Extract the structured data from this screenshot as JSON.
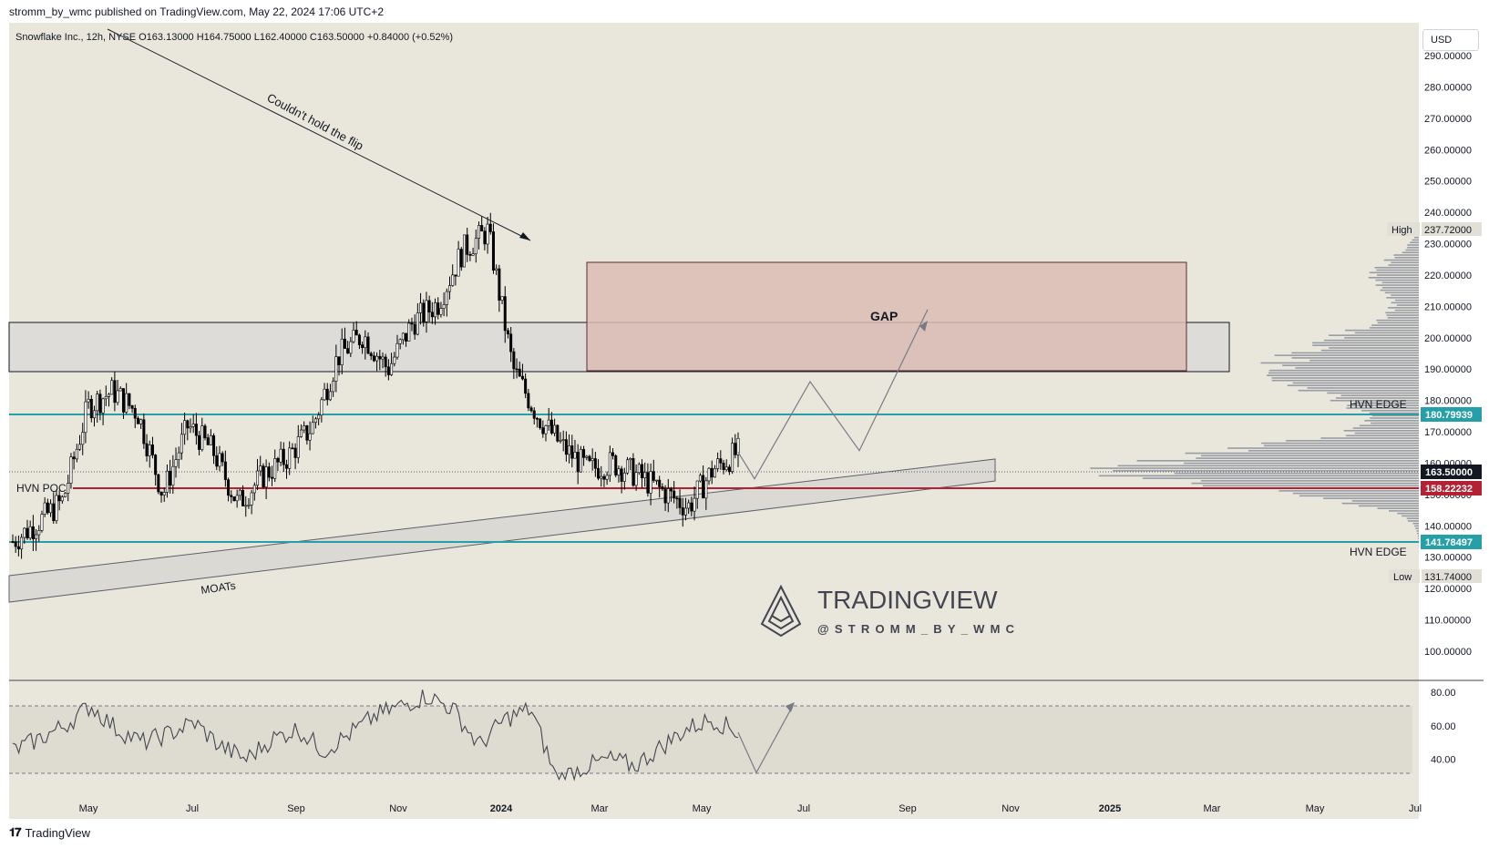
{
  "header": {
    "text": "stromm_by_wmc published on TradingView.com, May 22, 2024 17:06 UTC+2"
  },
  "legend": {
    "text": "Snowflake Inc., 12h, NYSE  O163.13000  H164.75000  L162.40000  C163.50000  +0.84000 (+0.52%)"
  },
  "currency": {
    "label": "USD"
  },
  "footer": {
    "logo_icon": "tradingview-logo-icon",
    "text": "TradingView"
  },
  "watermark": {
    "title": "TRADINGVIEW",
    "handle": "@STROMM_BY_WMC",
    "icon": "tradingview-mountain-icon"
  },
  "annotations": {
    "flip": "Couldn't hold the flip",
    "gap": "GAP",
    "moats": "MOATs",
    "hvn_poc": "HVN POC",
    "hvn_edge_top": "HVN EDGE",
    "hvn_edge_bottom": "HVN EDGE"
  },
  "colors": {
    "background": "#e9e6dc",
    "candle": "#000000",
    "hvn_edge": "#26a0a8",
    "poc": "#b22234",
    "gap_fill": "#e0c6c0",
    "last_price": "#131722",
    "volume_profile": "#8a8e9a"
  },
  "price_axis": {
    "ticks": [
      "290.00000",
      "280.00000",
      "270.00000",
      "260.00000",
      "250.00000",
      "240.00000",
      "230.00000",
      "220.00000",
      "210.00000",
      "200.00000",
      "190.00000",
      "180.00000",
      "170.00000",
      "160.00000",
      "150.00000",
      "140.00000",
      "130.00000",
      "120.00000",
      "110.00000",
      "100.00000"
    ],
    "high_label": "High",
    "high_value": "237.72000",
    "hvn_edge_top_value": "180.79939",
    "last_value": "163.50000",
    "poc_value": "158.22232",
    "hvn_edge_bottom_value": "141.78497",
    "low_label": "Low",
    "low_value": "131.74000"
  },
  "rsi_axis": {
    "ticks": [
      "80.00",
      "60.00",
      "40.00"
    ]
  },
  "time_axis": {
    "labels": [
      "May",
      "Jul",
      "Sep",
      "Nov",
      "2024",
      "Mar",
      "May",
      "Jul",
      "Sep",
      "Nov",
      "2025",
      "Mar",
      "May",
      "Jul"
    ]
  },
  "chart_data": {
    "type": "line",
    "title": "Snowflake Inc., 12h, NYSE",
    "x_labels": [
      "May",
      "Jul",
      "Sep",
      "Nov",
      "2024",
      "Mar",
      "May"
    ],
    "series": [
      {
        "name": "",
        "values": [
          135,
          141,
          148,
          178,
          183,
          176,
          150,
          172,
          164,
          147,
          156,
          162,
          172,
          194,
          201,
          190,
          205,
          211,
          228,
          234,
          190,
          175,
          165,
          158,
          160,
          156,
          151,
          146,
          158,
          163.5
        ]
      }
    ],
    "projection": {
      "values": [
        163.5,
        155,
        186,
        164,
        209
      ]
    },
    "levels": {
      "high": 237.72,
      "hvn_edge_top": 180.79939,
      "last": 163.5,
      "poc": 158.22232,
      "hvn_edge_bottom": 141.78497,
      "low": 131.74
    },
    "zones": {
      "gap": [
        195,
        227
      ],
      "resistance": [
        195,
        210
      ]
    },
    "ylim": [
      100,
      290
    ],
    "rsi": {
      "name": "",
      "values": [
        45,
        52,
        60,
        72,
        58,
        50,
        55,
        62,
        48,
        40,
        52,
        58,
        45,
        55,
        66,
        72,
        78,
        70,
        48,
        64,
        70,
        28,
        35,
        40,
        36,
        47,
        58,
        64,
        56
      ],
      "projection": [
        56,
        32,
        72
      ],
      "ylim": [
        30,
        80
      ]
    },
    "grid": false
  }
}
